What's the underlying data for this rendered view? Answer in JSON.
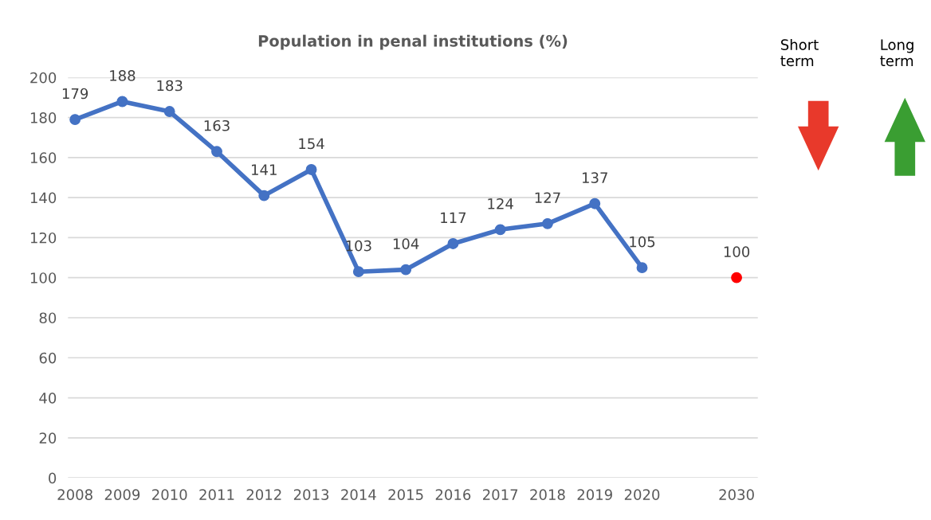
{
  "chart_data": {
    "type": "line",
    "title": "Population in penal institutions (%)",
    "categories": [
      "2008",
      "2009",
      "2010",
      "2011",
      "2012",
      "2013",
      "2014",
      "2015",
      "2016",
      "2017",
      "2018",
      "2019",
      "2020",
      null,
      "2030"
    ],
    "series": [
      {
        "color": "#4472c4",
        "values": [
          179,
          188,
          183,
          163,
          141,
          154,
          103,
          104,
          117,
          124,
          127,
          137,
          105,
          null,
          null
        ]
      },
      {
        "type": "scatter",
        "color": "#ff0000",
        "values": [
          null,
          null,
          null,
          null,
          null,
          null,
          null,
          null,
          null,
          null,
          null,
          null,
          null,
          null,
          100
        ]
      }
    ],
    "ylim": [
      0,
      200
    ],
    "yticks": [
      0,
      20,
      40,
      60,
      80,
      100,
      120,
      140,
      160,
      180,
      200
    ],
    "grid": "y",
    "marker": "circle",
    "line_style": "solid",
    "data_labels": true,
    "legend": false,
    "annotations": [
      "Short term",
      "Long term"
    ]
  }
}
